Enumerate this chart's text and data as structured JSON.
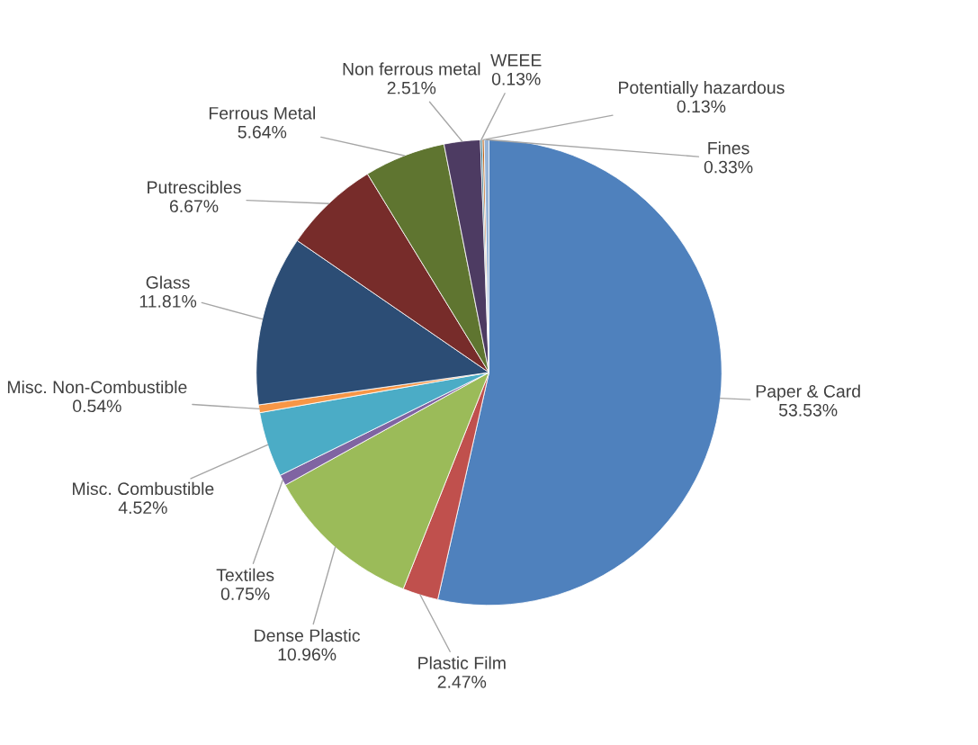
{
  "chart_data": {
    "type": "pie",
    "categories": [
      "Paper & Card",
      "Plastic Film",
      "Dense Plastic",
      "Textiles",
      "Misc. Combustible",
      "Misc. Non-Combustible",
      "Glass",
      "Putrescibles",
      "Ferrous Metal",
      "Non ferrous metal",
      "WEEE",
      "Potentially hazardous",
      "Fines"
    ],
    "values": [
      53.53,
      2.47,
      10.96,
      0.75,
      4.52,
      0.54,
      11.81,
      6.67,
      5.64,
      2.51,
      0.13,
      0.13,
      0.33
    ],
    "value_labels": [
      "53.53%",
      "2.47%",
      "10.96%",
      "0.75%",
      "4.52%",
      "0.54%",
      "11.81%",
      "6.67%",
      "5.64%",
      "2.51%",
      "0.13%",
      "0.13%",
      "0.33%"
    ],
    "colors": [
      "#4f81bd",
      "#c0504d",
      "#9bbb59",
      "#8064a2",
      "#4bacc6",
      "#f79646",
      "#2c4d75",
      "#772c2a",
      "#5f7530",
      "#4d3b62",
      "#276a7c",
      "#b65708",
      "#95b3d7"
    ],
    "legend": false
  }
}
